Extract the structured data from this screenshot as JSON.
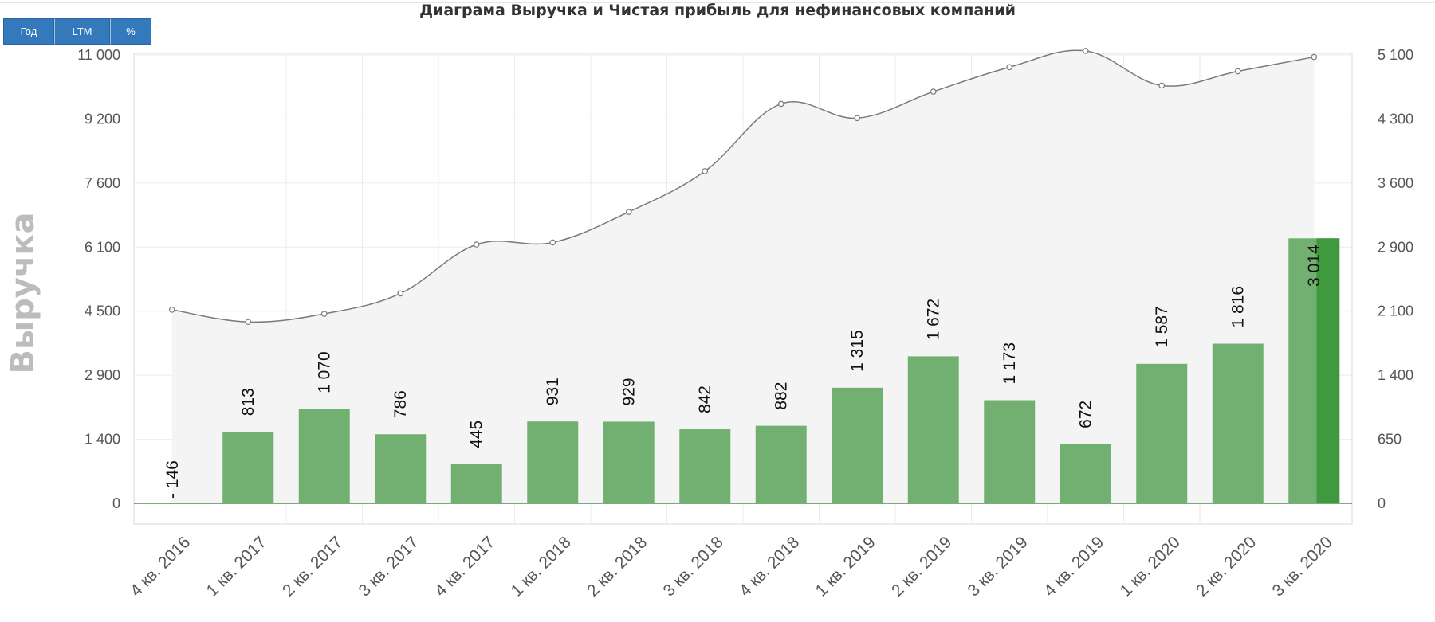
{
  "toolbar": {
    "buttons": [
      {
        "label": "Год"
      },
      {
        "label": "LTM"
      },
      {
        "label": "%"
      }
    ]
  },
  "chart_data": {
    "type": "bar",
    "title": "Диаграма Выручка и Чистая прибыль для нефинансовых компаний",
    "ylabel": "Выручка",
    "y2label": "",
    "categories": [
      "4 кв. 2016",
      "1 кв. 2017",
      "2 кв. 2017",
      "3 кв. 2017",
      "4 кв. 2017",
      "1 кв. 2018",
      "2 кв. 2018",
      "3 кв. 2018",
      "4 кв. 2018",
      "1 кв. 2019",
      "2 кв. 2019",
      "3 кв. 2019",
      "4 кв. 2019",
      "1 кв. 2020",
      "2 кв. 2020",
      "3 кв. 2020"
    ],
    "y_ticks": [
      "0",
      "1 400",
      "2 900",
      "4 500",
      "6 100",
      "7 600",
      "9 200",
      "11 000"
    ],
    "y2_ticks": [
      "0",
      "650",
      "1 400",
      "2 100",
      "2 900",
      "3 600",
      "4 300",
      "5 100"
    ],
    "ylim": [
      0,
      11000
    ],
    "y2lim": [
      0,
      5100
    ],
    "series": [
      {
        "type": "bar",
        "axis": "right",
        "values": [
          -146,
          813,
          1070,
          786,
          445,
          931,
          929,
          842,
          882,
          1315,
          1672,
          1173,
          672,
          1587,
          1816,
          3014
        ],
        "labels": [
          "- 146",
          "813",
          "1 070",
          "786",
          "445",
          "931",
          "929",
          "842",
          "882",
          "1 315",
          "1 672",
          "1 173",
          "672",
          "1 587",
          "1 816",
          "3 014"
        ],
        "color": "#72b071",
        "negative_color": "#2b9bd0",
        "highlight_color": "#3f9a3f"
      },
      {
        "type": "area",
        "axis": "left",
        "values": [
          4750,
          4450,
          4650,
          5150,
          6350,
          6400,
          7150,
          8150,
          9800,
          9450,
          10100,
          10700,
          11100,
          10250,
          10600,
          10950
        ],
        "line_color": "#7a7a7a",
        "fill_color": "#f4f4f4"
      }
    ],
    "grid": true
  }
}
